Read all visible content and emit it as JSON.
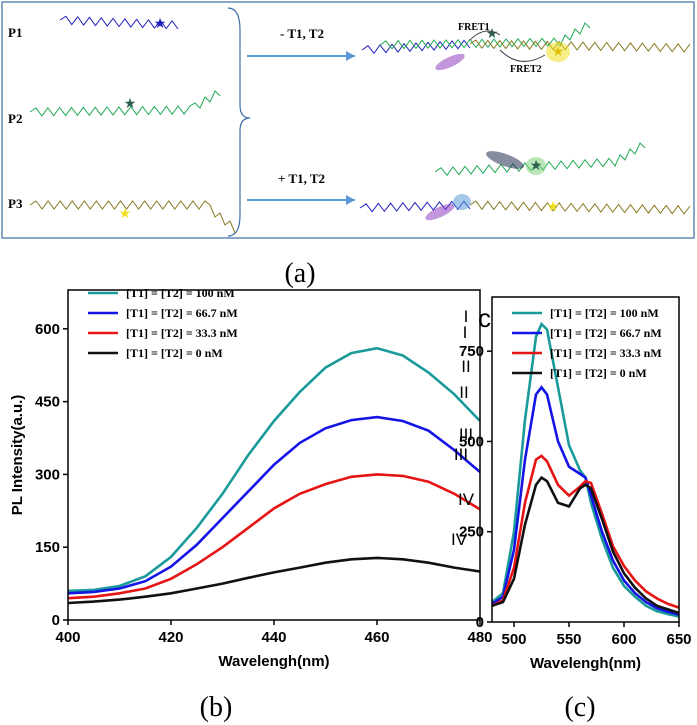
{
  "diagram": {
    "strands": [
      "P1",
      "P2",
      "P3"
    ],
    "condition_minus": "- T1, T2",
    "condition_plus": "+ T1, T2",
    "fret": [
      "FRET1",
      "FRET2"
    ],
    "caption": "(a)"
  },
  "chart_data": [
    {
      "type": "line",
      "caption": "(b)",
      "x_label": "Wavelengh(nm)",
      "y_label": "PL Intensity(a.u.)",
      "x": [
        400,
        405,
        410,
        415,
        420,
        425,
        430,
        435,
        440,
        445,
        450,
        455,
        460,
        465,
        470,
        475,
        480
      ],
      "series": [
        {
          "name": "[T1] = [T2] = 100 nM",
          "color": "#1a9a9a",
          "values": [
            60,
            62,
            70,
            90,
            130,
            190,
            260,
            340,
            410,
            470,
            520,
            550,
            560,
            545,
            510,
            465,
            410
          ]
        },
        {
          "name": "[T1] = [T2] = 66.7 nM",
          "color": "#1414e6",
          "values": [
            55,
            58,
            65,
            80,
            110,
            155,
            210,
            265,
            320,
            365,
            395,
            412,
            418,
            410,
            390,
            350,
            305
          ]
        },
        {
          "name": "[T1] = [T2] = 33.3 nM",
          "color": "#e61414",
          "values": [
            45,
            48,
            55,
            65,
            85,
            115,
            150,
            190,
            230,
            260,
            280,
            295,
            300,
            297,
            285,
            260,
            228
          ]
        },
        {
          "name": "[T1] = [T2] = 0 nM",
          "color": "#111111",
          "values": [
            35,
            38,
            42,
            48,
            55,
            65,
            75,
            87,
            98,
            108,
            118,
            125,
            128,
            125,
            118,
            108,
            100
          ]
        }
      ],
      "annotations": [
        "I",
        "II",
        "III",
        "IV"
      ],
      "xlim": [
        400,
        480
      ],
      "ylim": [
        0,
        680
      ],
      "xticks": [
        400,
        420,
        440,
        460,
        480
      ],
      "yticks": [
        0,
        150,
        300,
        450,
        600
      ]
    },
    {
      "type": "line",
      "caption": "(c)",
      "panel_mark": "c",
      "x_label": "Wavelengh(nm)",
      "x": [
        480,
        490,
        500,
        510,
        520,
        525,
        530,
        540,
        550,
        560,
        565,
        570,
        580,
        590,
        600,
        610,
        620,
        630,
        640,
        650
      ],
      "series": [
        {
          "name": "[T1] = [T2] = 100 nM",
          "color": "#1a9a9a",
          "values": [
            55,
            80,
            250,
            560,
            790,
            825,
            810,
            650,
            490,
            420,
            400,
            330,
            230,
            150,
            100,
            70,
            45,
            30,
            22,
            15
          ]
        },
        {
          "name": "[T1] = [T2] = 66.7 nM",
          "color": "#1414e6",
          "values": [
            50,
            70,
            200,
            450,
            630,
            650,
            630,
            500,
            430,
            410,
            400,
            350,
            250,
            170,
            115,
            80,
            55,
            38,
            28,
            20
          ]
        },
        {
          "name": "[T1] = [T2] = 33.3 nM",
          "color": "#e61414",
          "values": [
            45,
            60,
            150,
            330,
            450,
            460,
            445,
            380,
            350,
            375,
            390,
            385,
            300,
            210,
            155,
            115,
            85,
            65,
            50,
            40
          ]
        },
        {
          "name": "[T1] = [T2] = 0 nM",
          "color": "#111111",
          "values": [
            45,
            55,
            120,
            270,
            380,
            400,
            390,
            330,
            320,
            370,
            380,
            370,
            285,
            195,
            135,
            95,
            65,
            45,
            35,
            25
          ]
        }
      ],
      "annotations": [
        "I",
        "II",
        "III",
        "IV"
      ],
      "xlim": [
        480,
        650
      ],
      "ylim": [
        0,
        900
      ],
      "xticks": [
        500,
        550,
        600,
        650
      ],
      "yticks": [
        0,
        250,
        500,
        750
      ]
    }
  ]
}
